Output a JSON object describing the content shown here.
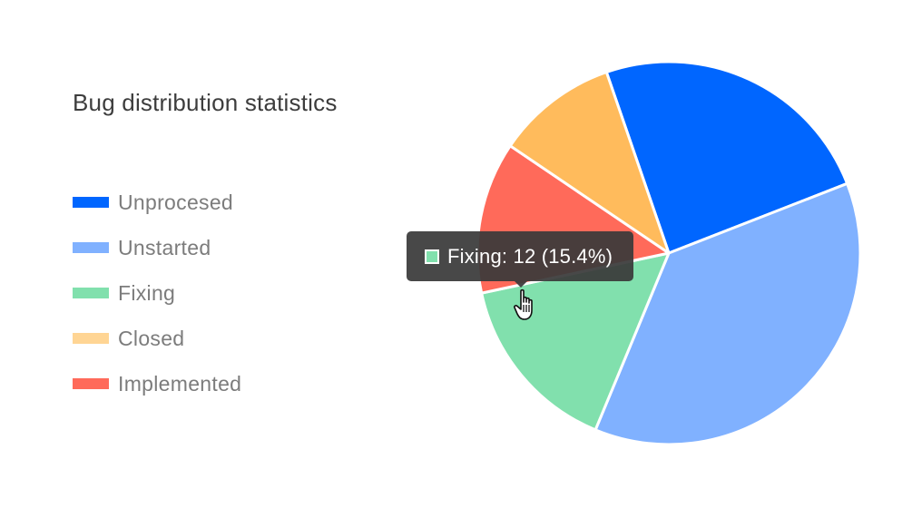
{
  "chart_data": {
    "type": "pie",
    "title": "Bug distribution statistics",
    "categories": [
      "Unprocesed",
      "Unstarted",
      "Fixing",
      "Closed",
      "Implemented"
    ],
    "values": [
      19,
      29,
      12,
      8,
      10
    ],
    "colors": [
      "#0066ff",
      "#80b1ff",
      "#81e0ad",
      "#ffbb5c",
      "#ff6a5a"
    ],
    "legend_colors": [
      "#0066ff",
      "#80b1ff",
      "#81e0ad",
      "#ffd594",
      "#ff6a5a"
    ],
    "slice_order": [
      "Unprocesed",
      "Unstarted",
      "Fixing",
      "Implemented",
      "Closed"
    ],
    "legend_position": "left",
    "tooltip": {
      "category": "Fixing",
      "text": "Fixing: 12 (15.4%)"
    }
  }
}
